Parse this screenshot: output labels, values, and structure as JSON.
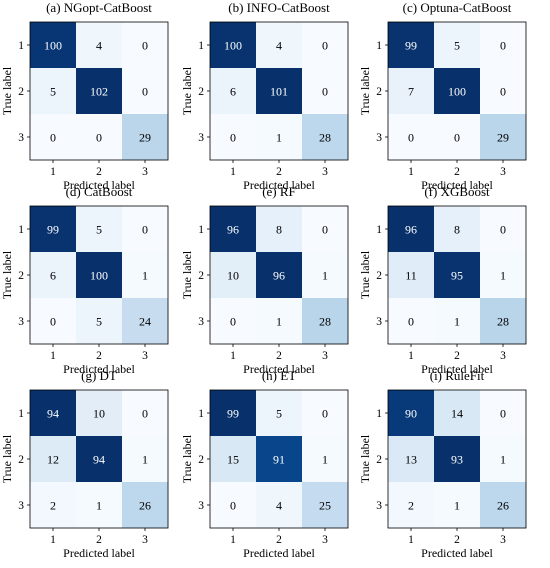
{
  "chart_data": [
    {
      "type": "heatmap",
      "title": "(a) NGopt-CatBoost",
      "xlabel": "Predicted label",
      "ylabel": "True label",
      "x_tick_labels": [
        "1",
        "2",
        "3"
      ],
      "y_tick_labels": [
        "1",
        "2",
        "3"
      ],
      "values": [
        [
          100,
          4,
          0
        ],
        [
          5,
          102,
          0
        ],
        [
          0,
          0,
          29
        ]
      ],
      "colormap": "Blues"
    },
    {
      "type": "heatmap",
      "title": "(b) INFO-CatBoost",
      "xlabel": "Predicted label",
      "ylabel": "True label",
      "x_tick_labels": [
        "1",
        "2",
        "3"
      ],
      "y_tick_labels": [
        "1",
        "2",
        "3"
      ],
      "values": [
        [
          100,
          4,
          0
        ],
        [
          6,
          101,
          0
        ],
        [
          0,
          1,
          28
        ]
      ],
      "colormap": "Blues"
    },
    {
      "type": "heatmap",
      "title": "(c) Optuna-CatBoost",
      "xlabel": "Predicted label",
      "ylabel": "True label",
      "x_tick_labels": [
        "1",
        "2",
        "3"
      ],
      "y_tick_labels": [
        "1",
        "2",
        "3"
      ],
      "values": [
        [
          99,
          5,
          0
        ],
        [
          7,
          100,
          0
        ],
        [
          0,
          0,
          29
        ]
      ],
      "colormap": "Blues"
    },
    {
      "type": "heatmap",
      "title": "(d) CatBoost",
      "xlabel": "Predicted label",
      "ylabel": "True label",
      "x_tick_labels": [
        "1",
        "2",
        "3"
      ],
      "y_tick_labels": [
        "1",
        "2",
        "3"
      ],
      "values": [
        [
          99,
          5,
          0
        ],
        [
          6,
          100,
          1
        ],
        [
          0,
          5,
          24
        ]
      ],
      "colormap": "Blues"
    },
    {
      "type": "heatmap",
      "title": "(e) RF",
      "xlabel": "Predicted label",
      "ylabel": "True label",
      "x_tick_labels": [
        "1",
        "2",
        "3"
      ],
      "y_tick_labels": [
        "1",
        "2",
        "3"
      ],
      "values": [
        [
          96,
          8,
          0
        ],
        [
          10,
          96,
          1
        ],
        [
          0,
          1,
          28
        ]
      ],
      "colormap": "Blues"
    },
    {
      "type": "heatmap",
      "title": "(f) XGBoost",
      "xlabel": "Predicted label",
      "ylabel": "True label",
      "x_tick_labels": [
        "1",
        "2",
        "3"
      ],
      "y_tick_labels": [
        "1",
        "2",
        "3"
      ],
      "values": [
        [
          96,
          8,
          0
        ],
        [
          11,
          95,
          1
        ],
        [
          0,
          1,
          28
        ]
      ],
      "colormap": "Blues"
    },
    {
      "type": "heatmap",
      "title": "(g) DT",
      "xlabel": "Predicted label",
      "ylabel": "True label",
      "x_tick_labels": [
        "1",
        "2",
        "3"
      ],
      "y_tick_labels": [
        "1",
        "2",
        "3"
      ],
      "values": [
        [
          94,
          10,
          0
        ],
        [
          12,
          94,
          1
        ],
        [
          2,
          1,
          26
        ]
      ],
      "colormap": "Blues"
    },
    {
      "type": "heatmap",
      "title": "(h) ET",
      "xlabel": "Predicted label",
      "ylabel": "True label",
      "x_tick_labels": [
        "1",
        "2",
        "3"
      ],
      "y_tick_labels": [
        "1",
        "2",
        "3"
      ],
      "values": [
        [
          99,
          5,
          0
        ],
        [
          15,
          91,
          1
        ],
        [
          0,
          4,
          25
        ]
      ],
      "colormap": "Blues"
    },
    {
      "type": "heatmap",
      "title": "(i) RuleFit",
      "xlabel": "Predicted label",
      "ylabel": "True label",
      "x_tick_labels": [
        "1",
        "2",
        "3"
      ],
      "y_tick_labels": [
        "1",
        "2",
        "3"
      ],
      "values": [
        [
          90,
          14,
          0
        ],
        [
          13,
          93,
          1
        ],
        [
          2,
          1,
          26
        ]
      ],
      "colormap": "Blues"
    }
  ]
}
